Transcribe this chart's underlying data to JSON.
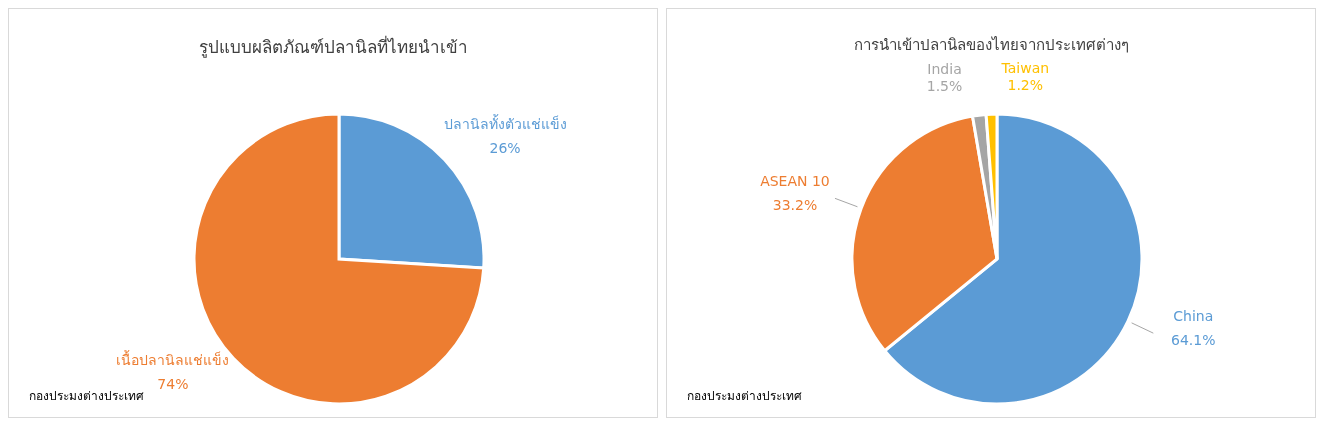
{
  "chart_data": [
    {
      "type": "pie",
      "title": "รูปแบบผลิตภัณฑ์ปลานิลที่ไทยนำเข้า",
      "categories": [
        "ปลานิลทั้งตัวแช่แข็ง",
        "เนื้อปลานิลแช่แข็ง"
      ],
      "values": [
        26,
        74
      ],
      "colors": [
        "#5b9bd5",
        "#ed7d31"
      ],
      "value_labels": [
        "26%",
        "74%"
      ],
      "annotations": [
        "กองประมงต่างประเทศ"
      ]
    },
    {
      "type": "pie",
      "title": "การนำเข้าปลานิลของไทยจากประเทศต่างๆ",
      "categories": [
        "China",
        "ASEAN 10",
        "India",
        "Taiwan"
      ],
      "values": [
        64.1,
        33.2,
        1.5,
        1.2
      ],
      "colors": [
        "#5b9bd5",
        "#ed7d31",
        "#a5a5a5",
        "#ffc000"
      ],
      "value_labels": [
        "64.1%",
        "33.2%",
        "1.5%",
        "1.2%"
      ],
      "annotations": [
        "กองประมงต่างประเทศ"
      ]
    }
  ]
}
